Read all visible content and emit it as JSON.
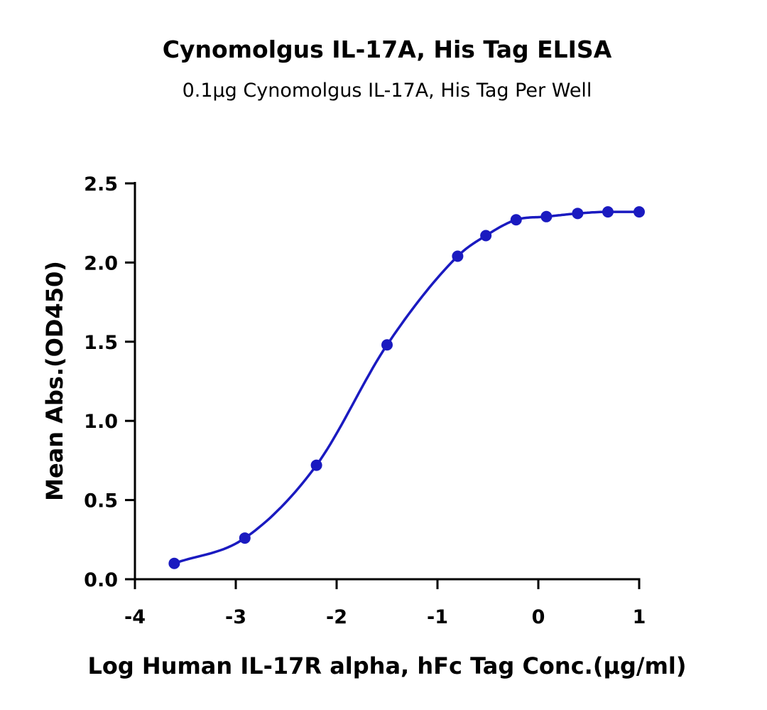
{
  "chart_data": {
    "type": "scatter",
    "title": "Cynomolgus IL-17A, His Tag ELISA",
    "subtitle": "0.1μg Cynomolgus IL-17A, His Tag Per Well",
    "xlabel": "Log Human IL-17R alpha, hFc Tag Conc.(μg/ml)",
    "ylabel": "Mean Abs.(OD450)",
    "xlim": [
      -4,
      1
    ],
    "ylim": [
      0,
      2.5
    ],
    "x_ticks": [
      "-4",
      "-3",
      "-2",
      "-1",
      "0",
      "1"
    ],
    "y_ticks": [
      "0.0",
      "0.5",
      "1.0",
      "1.5",
      "2.0",
      "2.5"
    ],
    "grid": false,
    "series": [
      {
        "x": [
          -3.61,
          -2.91,
          -2.2,
          -1.5,
          -0.8,
          -0.52,
          -0.22,
          0.08,
          0.39,
          0.69,
          1.0
        ],
        "y": [
          0.1,
          0.26,
          0.72,
          1.48,
          2.04,
          2.17,
          2.27,
          2.29,
          2.31,
          2.32,
          2.32
        ],
        "color": "#1a1ac0",
        "fit_curve": "sigmoidal"
      }
    ]
  }
}
